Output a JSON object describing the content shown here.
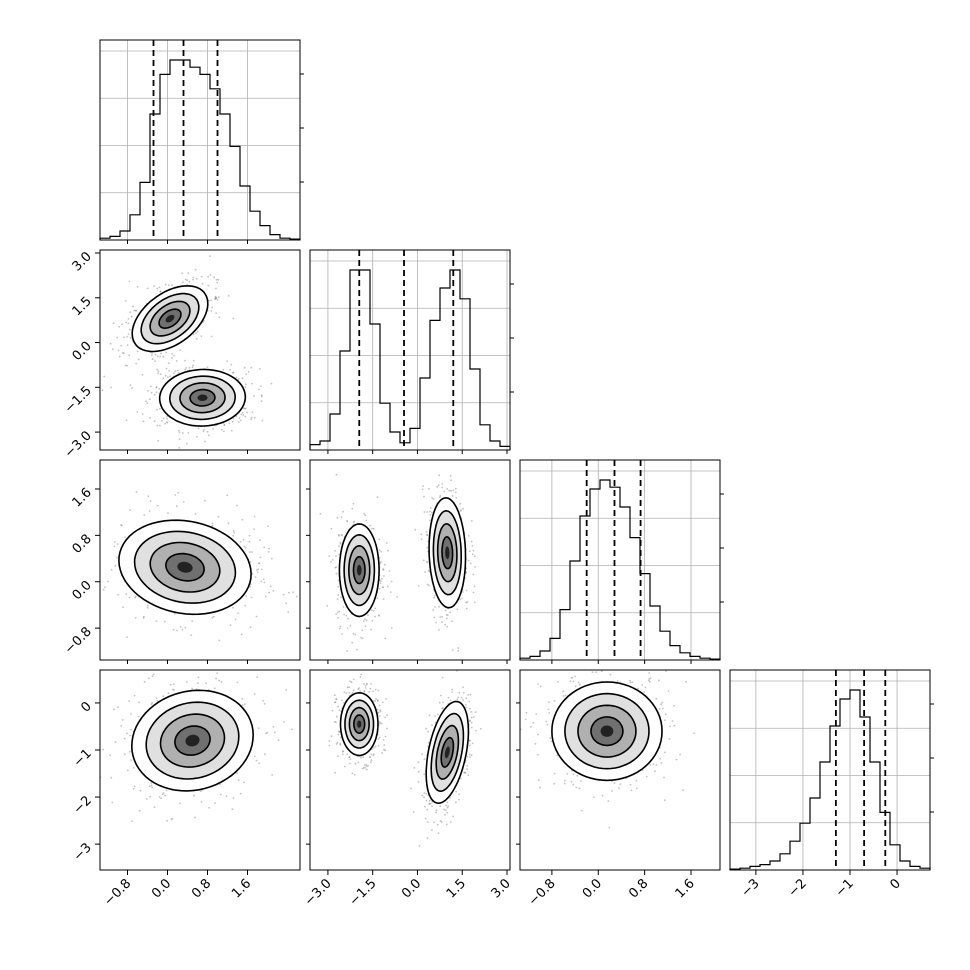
{
  "chart_data": {
    "type": "corner",
    "n_params": 4,
    "labels": [
      "",
      "",
      "",
      ""
    ],
    "params": [
      {
        "range": [
          -1.35,
          2.65
        ],
        "ticks": [
          -0.8,
          0.0,
          0.8,
          1.6
        ],
        "tick_labels": [
          "−0.8",
          "0.0",
          "0.8",
          "1.6"
        ],
        "quantiles": [
          -0.28,
          0.32,
          1.0
        ],
        "hist": [
          1,
          2,
          5,
          14,
          32,
          70,
          92,
          100,
          100,
          96,
          92,
          84,
          70,
          52,
          30,
          16,
          8,
          3,
          1,
          0.5
        ]
      },
      {
        "range": [
          -3.6,
          3.1
        ],
        "ticks": [
          -3.0,
          -1.5,
          0.0,
          1.5,
          3.0
        ],
        "tick_labels": [
          "−3.0",
          "−1.5",
          "0.0",
          "1.5",
          "3.0"
        ],
        "quantiles": [
          -1.95,
          -0.45,
          1.2
        ],
        "hist": [
          3,
          5,
          20,
          55,
          100,
          100,
          70,
          26,
          10,
          4,
          12,
          40,
          72,
          90,
          100,
          84,
          45,
          14,
          5,
          2
        ]
      },
      {
        "range": [
          -1.35,
          2.1
        ],
        "ticks": [
          -0.8,
          0.0,
          0.8,
          1.6
        ],
        "tick_labels": [
          "−0.8",
          "0.0",
          "0.8",
          "1.6"
        ],
        "quantiles": [
          -0.2,
          0.28,
          0.73
        ],
        "hist": [
          1,
          2,
          5,
          12,
          28,
          55,
          80,
          95,
          100,
          96,
          85,
          68,
          48,
          30,
          16,
          8,
          4,
          2,
          1,
          0.5
        ]
      },
      {
        "range": [
          -3.55,
          0.7
        ],
        "ticks": [
          -3,
          -2,
          -1,
          0
        ],
        "tick_labels": [
          "−3",
          "−2",
          "−1",
          "0"
        ],
        "quantiles": [
          -1.3,
          -0.7,
          -0.25
        ],
        "hist": [
          0.5,
          1,
          2,
          3,
          5,
          9,
          16,
          26,
          40,
          60,
          80,
          95,
          100,
          85,
          60,
          32,
          14,
          5,
          2,
          1
        ]
      }
    ],
    "pairs": [
      {
        "row": 1,
        "col": 0,
        "blobs": [
          {
            "cx": 0.05,
            "cy": 0.8,
            "sx": 0.33,
            "sy": 0.62,
            "rot": -25
          },
          {
            "cx": 0.7,
            "cy": -1.85,
            "sx": 0.45,
            "sy": 0.5,
            "rot": -8
          }
        ]
      },
      {
        "row": 2,
        "col": 0,
        "blobs": [
          {
            "cx": 0.35,
            "cy": 0.25,
            "sx": 0.7,
            "sy": 0.42,
            "rot": -8
          }
        ]
      },
      {
        "row": 2,
        "col": 1,
        "blobs": [
          {
            "cx": -1.95,
            "cy": 0.2,
            "sx": 0.35,
            "sy": 0.42,
            "rot": 0
          },
          {
            "cx": 1.0,
            "cy": 0.5,
            "sx": 0.32,
            "sy": 0.5,
            "rot": 5
          }
        ]
      },
      {
        "row": 3,
        "col": 0,
        "blobs": [
          {
            "cx": 0.5,
            "cy": -0.8,
            "sx": 0.65,
            "sy": 0.55,
            "rot": 20
          }
        ]
      },
      {
        "row": 3,
        "col": 1,
        "blobs": [
          {
            "cx": -1.95,
            "cy": -0.45,
            "sx": 0.33,
            "sy": 0.35,
            "rot": 0
          },
          {
            "cx": 1.0,
            "cy": -1.05,
            "sx": 0.32,
            "sy": 0.6,
            "rot": -22
          }
        ]
      },
      {
        "row": 3,
        "col": 2,
        "blobs": [
          {
            "cx": 0.15,
            "cy": -0.6,
            "sx": 0.5,
            "sy": 0.55,
            "rot": 0
          }
        ]
      }
    ],
    "grid": true
  }
}
